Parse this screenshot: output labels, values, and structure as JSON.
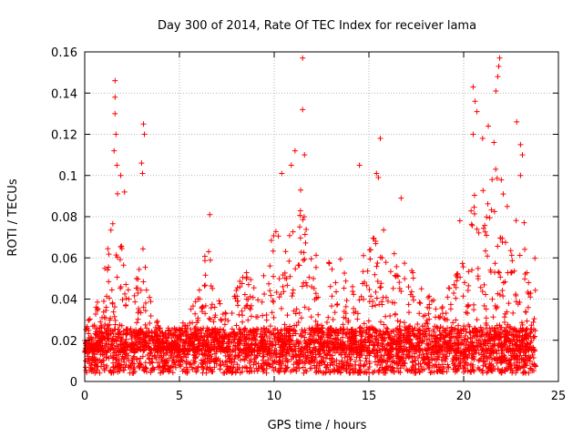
{
  "chart_data": {
    "type": "scatter",
    "title": "Day 300 of 2014, Rate Of TEC Index for receiver lama",
    "xlabel": "GPS time / hours",
    "ylabel": "ROTI / TECUs",
    "xlim": [
      0,
      25
    ],
    "ylim": [
      0,
      0.16
    ],
    "x_ticks": [
      "0",
      "5",
      "10",
      "15",
      "20",
      "25"
    ],
    "y_ticks": [
      "0",
      "0.02",
      "0.04",
      "0.06",
      "0.08",
      "0.1",
      "0.12",
      "0.14",
      "0.16"
    ],
    "grid": true,
    "marker": "+",
    "color": "#ff0000",
    "envelope": {
      "x": [
        0,
        0.5,
        1,
        1.3,
        1.6,
        1.8,
        2.0,
        2.3,
        2.6,
        3.0,
        3.2,
        3.5,
        4,
        4.5,
        5,
        5.5,
        6,
        6.5,
        7,
        7.5,
        8,
        8.5,
        9,
        9.5,
        10,
        10.5,
        11,
        11.5,
        12,
        12.5,
        13,
        13.5,
        14,
        14.5,
        15,
        15.5,
        16,
        16.5,
        17,
        17.5,
        18,
        18.5,
        19,
        19.5,
        20,
        20.5,
        21,
        21.5,
        22,
        22.5,
        23,
        23.5,
        23.8
      ],
      "y": [
        0.03,
        0.035,
        0.05,
        0.075,
        0.11,
        0.09,
        0.065,
        0.05,
        0.045,
        0.07,
        0.06,
        0.04,
        0.025,
        0.022,
        0.025,
        0.035,
        0.045,
        0.07,
        0.04,
        0.035,
        0.045,
        0.055,
        0.05,
        0.055,
        0.08,
        0.065,
        0.09,
        0.1,
        0.07,
        0.055,
        0.06,
        0.06,
        0.05,
        0.055,
        0.085,
        0.07,
        0.08,
        0.055,
        0.065,
        0.05,
        0.045,
        0.04,
        0.045,
        0.05,
        0.06,
        0.09,
        0.1,
        0.11,
        0.1,
        0.08,
        0.085,
        0.07,
        0.06
      ]
    },
    "outliers": [
      {
        "x": 1.6,
        "y": 0.146
      },
      {
        "x": 1.6,
        "y": 0.138
      },
      {
        "x": 1.6,
        "y": 0.13
      },
      {
        "x": 1.65,
        "y": 0.12
      },
      {
        "x": 1.55,
        "y": 0.112
      },
      {
        "x": 1.7,
        "y": 0.105
      },
      {
        "x": 1.9,
        "y": 0.1
      },
      {
        "x": 2.1,
        "y": 0.092
      },
      {
        "x": 3.1,
        "y": 0.125
      },
      {
        "x": 3.15,
        "y": 0.12
      },
      {
        "x": 3.0,
        "y": 0.106
      },
      {
        "x": 3.05,
        "y": 0.101
      },
      {
        "x": 6.6,
        "y": 0.081
      },
      {
        "x": 10.4,
        "y": 0.101
      },
      {
        "x": 10.9,
        "y": 0.105
      },
      {
        "x": 11.1,
        "y": 0.112
      },
      {
        "x": 11.5,
        "y": 0.157
      },
      {
        "x": 11.5,
        "y": 0.132
      },
      {
        "x": 11.6,
        "y": 0.11
      },
      {
        "x": 14.5,
        "y": 0.105
      },
      {
        "x": 15.4,
        "y": 0.101
      },
      {
        "x": 15.6,
        "y": 0.118
      },
      {
        "x": 15.5,
        "y": 0.099
      },
      {
        "x": 16.7,
        "y": 0.089
      },
      {
        "x": 19.8,
        "y": 0.078
      },
      {
        "x": 20.5,
        "y": 0.143
      },
      {
        "x": 20.6,
        "y": 0.136
      },
      {
        "x": 20.7,
        "y": 0.131
      },
      {
        "x": 20.5,
        "y": 0.12
      },
      {
        "x": 21.0,
        "y": 0.118
      },
      {
        "x": 21.3,
        "y": 0.124
      },
      {
        "x": 21.9,
        "y": 0.157
      },
      {
        "x": 21.85,
        "y": 0.153
      },
      {
        "x": 21.8,
        "y": 0.148
      },
      {
        "x": 21.7,
        "y": 0.141
      },
      {
        "x": 21.6,
        "y": 0.116
      },
      {
        "x": 22.8,
        "y": 0.126
      },
      {
        "x": 23.0,
        "y": 0.115
      },
      {
        "x": 23.1,
        "y": 0.11
      },
      {
        "x": 23.0,
        "y": 0.1
      },
      {
        "x": 22.3,
        "y": 0.085
      },
      {
        "x": 21.5,
        "y": 0.098
      }
    ]
  }
}
